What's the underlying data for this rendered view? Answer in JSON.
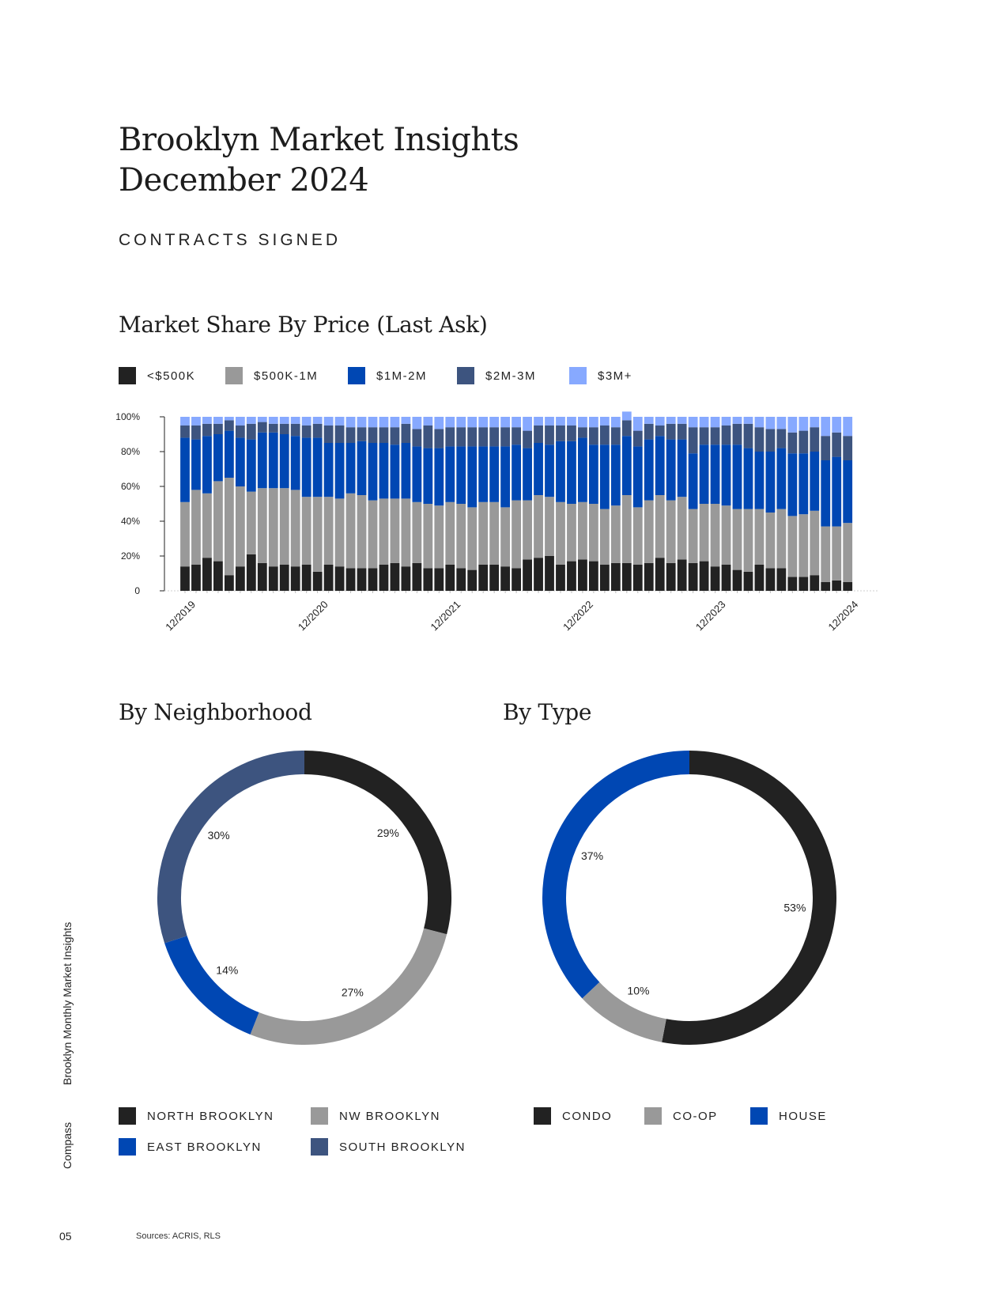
{
  "header": {
    "title_line1": "Brooklyn Market Insights",
    "title_line2": "December 2024",
    "section": "CONTRACTS SIGNED"
  },
  "colors": {
    "under_500k": "#222222",
    "500k_1m": "#999999",
    "1m_2m": "#0047b3",
    "2m_3m": "#3d547f",
    "3m_plus": "#87a9ff"
  },
  "chart_data": [
    {
      "type": "bar",
      "stacked": true,
      "title": "Market Share By Price (Last Ask)",
      "legend": [
        "<$500K",
        "$500K-1M",
        "$1M-2M",
        "$2M-3M",
        "$3M+"
      ],
      "legend_placement": "top-left",
      "ylim": [
        0,
        100
      ],
      "y_ticks": [
        "0",
        "20%",
        "40%",
        "60%",
        "80%",
        "100%"
      ],
      "x_tick_labels": [
        "12/2019",
        "12/2020",
        "12/2021",
        "12/2022",
        "12/2023",
        "12/2024"
      ],
      "categories": [
        "12/2019",
        "1/2020",
        "2/2020",
        "3/2020",
        "4/2020",
        "5/2020",
        "6/2020",
        "7/2020",
        "8/2020",
        "9/2020",
        "10/2020",
        "11/2020",
        "12/2020",
        "1/2021",
        "2/2021",
        "3/2021",
        "4/2021",
        "5/2021",
        "6/2021",
        "7/2021",
        "8/2021",
        "9/2021",
        "10/2021",
        "11/2021",
        "12/2021",
        "1/2022",
        "2/2022",
        "3/2022",
        "4/2022",
        "5/2022",
        "6/2022",
        "7/2022",
        "8/2022",
        "9/2022",
        "10/2022",
        "11/2022",
        "12/2022",
        "1/2023",
        "2/2023",
        "3/2023",
        "4/2023",
        "5/2023",
        "6/2023",
        "7/2023",
        "8/2023",
        "9/2023",
        "10/2023",
        "11/2023",
        "12/2023",
        "1/2024",
        "2/2024",
        "3/2024",
        "4/2024",
        "5/2024",
        "6/2024",
        "7/2024",
        "8/2024",
        "9/2024",
        "10/2024",
        "11/2024",
        "12/2024"
      ],
      "series": [
        {
          "name": "<$500K",
          "values": [
            14,
            15,
            19,
            17,
            9,
            14,
            21,
            16,
            14,
            15,
            14,
            15,
            11,
            15,
            14,
            13,
            13,
            13,
            15,
            16,
            14,
            16,
            13,
            13,
            15,
            13,
            12,
            15,
            15,
            14,
            13,
            18,
            19,
            20,
            15,
            17,
            18,
            17,
            15,
            16,
            16,
            15,
            16,
            19,
            16,
            18,
            16,
            17,
            14,
            15,
            12,
            11,
            15,
            13,
            13,
            8,
            8,
            9,
            5,
            6,
            5
          ]
        },
        {
          "name": "$500K-1M",
          "values": [
            37,
            43,
            37,
            46,
            56,
            46,
            36,
            43,
            45,
            44,
            44,
            39,
            43,
            39,
            39,
            43,
            42,
            39,
            38,
            37,
            39,
            35,
            37,
            36,
            36,
            37,
            36,
            36,
            36,
            34,
            39,
            34,
            36,
            34,
            36,
            33,
            33,
            33,
            32,
            33,
            39,
            33,
            36,
            36,
            36,
            36,
            31,
            33,
            36,
            34,
            35,
            36,
            32,
            32,
            34,
            35,
            36,
            37,
            32,
            31,
            34
          ]
        },
        {
          "name": "$1M-2M",
          "values": [
            37,
            29,
            33,
            27,
            27,
            28,
            30,
            32,
            32,
            31,
            31,
            34,
            34,
            31,
            32,
            29,
            31,
            33,
            32,
            31,
            32,
            32,
            32,
            33,
            32,
            33,
            35,
            32,
            32,
            35,
            32,
            30,
            30,
            30,
            35,
            36,
            37,
            34,
            37,
            35,
            34,
            35,
            35,
            34,
            35,
            33,
            32,
            34,
            34,
            35,
            37,
            35,
            33,
            35,
            35,
            36,
            35,
            34,
            38,
            40,
            36
          ]
        },
        {
          "name": "$2M-3M",
          "values": [
            7,
            8,
            7,
            6,
            6,
            7,
            9,
            6,
            5,
            6,
            7,
            7,
            8,
            10,
            10,
            9,
            8,
            9,
            9,
            10,
            11,
            10,
            13,
            11,
            11,
            11,
            11,
            11,
            11,
            11,
            10,
            10,
            10,
            11,
            9,
            9,
            6,
            10,
            11,
            10,
            9,
            9,
            9,
            6,
            9,
            9,
            15,
            10,
            10,
            11,
            12,
            14,
            14,
            13,
            11,
            12,
            13,
            14,
            14,
            14,
            14
          ]
        },
        {
          "name": "$3M+",
          "values": [
            5,
            5,
            4,
            4,
            2,
            5,
            4,
            3,
            4,
            4,
            4,
            5,
            4,
            5,
            5,
            6,
            6,
            6,
            6,
            6,
            4,
            7,
            5,
            7,
            6,
            6,
            6,
            6,
            6,
            6,
            6,
            8,
            5,
            5,
            5,
            5,
            6,
            6,
            5,
            6,
            5,
            8,
            4,
            5,
            4,
            4,
            6,
            6,
            6,
            5,
            4,
            4,
            6,
            7,
            7,
            9,
            8,
            6,
            11,
            9,
            11
          ]
        }
      ]
    },
    {
      "type": "pie",
      "title": "By Neighborhood",
      "labels": [
        "NORTH BROOKLYN",
        "NW BROOKLYN",
        "EAST BROOKLYN",
        "SOUTH BROOKLYN"
      ],
      "values": [
        29,
        27,
        14,
        30
      ],
      "value_labels": [
        "29%",
        "27%",
        "14%",
        "30%"
      ],
      "colors": [
        "#222222",
        "#999999",
        "#0047b3",
        "#3d547f"
      ],
      "legend_placement": "bottom"
    },
    {
      "type": "pie",
      "title": "By Type",
      "labels": [
        "CONDO",
        "CO-OP",
        "HOUSE"
      ],
      "values": [
        53,
        10,
        37
      ],
      "value_labels": [
        "53%",
        "10%",
        "37%"
      ],
      "colors": [
        "#222222",
        "#999999",
        "#0047b3"
      ],
      "legend_placement": "bottom"
    }
  ],
  "sidebar": {
    "publication": "Brooklyn Monthly Market Insights",
    "brand": "Compass"
  },
  "footer": {
    "page_number": "05",
    "sources": "Sources: ACRIS, RLS"
  }
}
